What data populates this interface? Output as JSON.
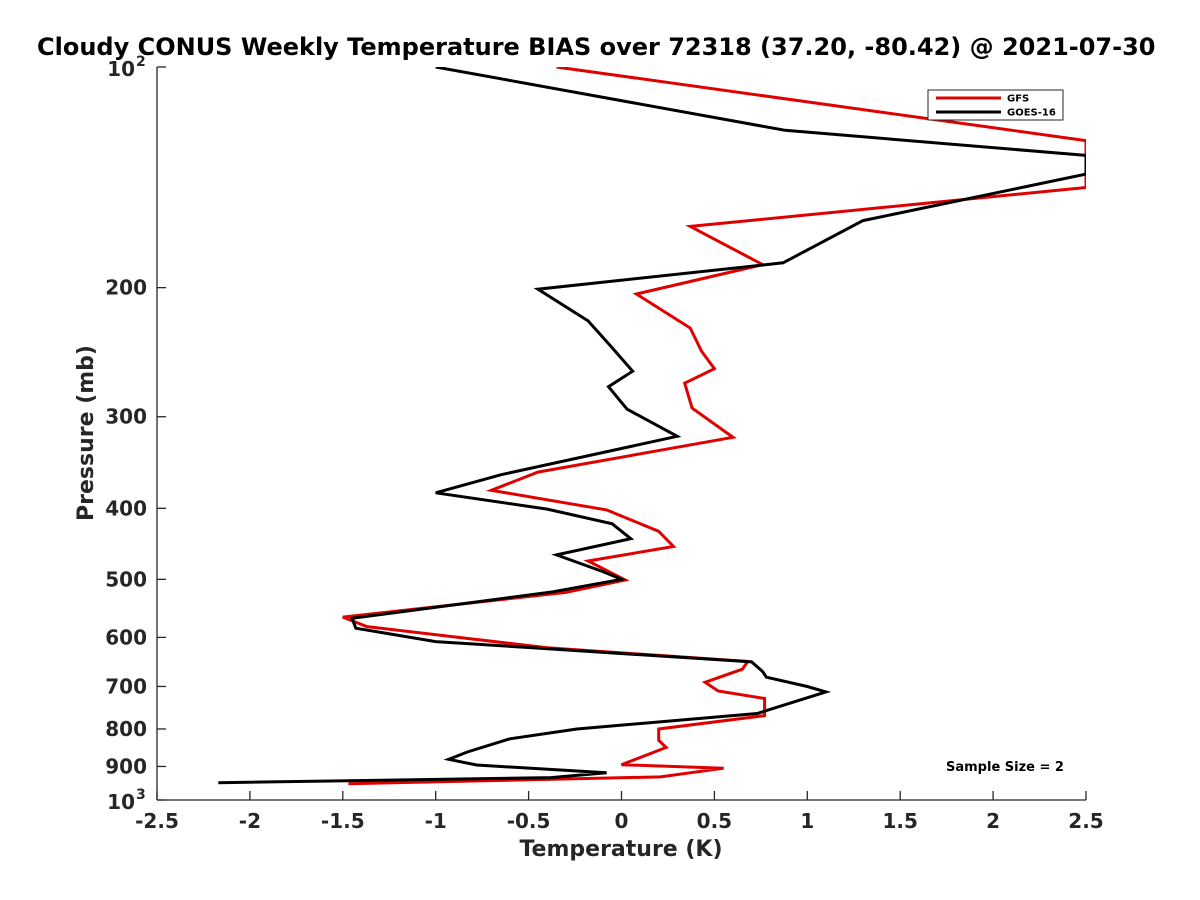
{
  "chart_data": {
    "type": "line",
    "title": "Cloudy CONUS Weekly Temperature BIAS over 72318 (37.20, -80.42) @ 2021-07-30",
    "xlabel": "Temperature (K)",
    "ylabel": "Pressure (mb)",
    "xlim": [
      -2.5,
      2.5
    ],
    "ylim": [
      100,
      1000
    ],
    "y_scale": "log",
    "y_reversed": true,
    "grid": false,
    "legend_position": "top-right",
    "x_ticks": [
      "-2.5",
      "-2",
      "-1.5",
      "-1",
      "-0.5",
      "0",
      "0.5",
      "1",
      "1.5",
      "2",
      "2.5"
    ],
    "y_ticks": [
      {
        "value": 100,
        "base": "10",
        "exp": "2"
      },
      {
        "value": 200,
        "label": "200"
      },
      {
        "value": 300,
        "label": "300"
      },
      {
        "value": 400,
        "label": "400"
      },
      {
        "value": 500,
        "label": "500"
      },
      {
        "value": 600,
        "label": "600"
      },
      {
        "value": 700,
        "label": "700"
      },
      {
        "value": 800,
        "label": "800"
      },
      {
        "value": 900,
        "label": "900"
      },
      {
        "value": 1000,
        "base": "10",
        "exp": "3"
      }
    ],
    "series": [
      {
        "name": "GFS",
        "color": "#e00000",
        "points": [
          [
            -0.35,
            100
          ],
          [
            2.5,
            126
          ],
          [
            2.5,
            146
          ],
          [
            0.37,
            165
          ],
          [
            0.76,
            186
          ],
          [
            0.08,
            204
          ],
          [
            0.37,
            227
          ],
          [
            0.43,
            244
          ],
          [
            0.5,
            258
          ],
          [
            0.34,
            270
          ],
          [
            0.38,
            292
          ],
          [
            0.6,
            320
          ],
          [
            -0.45,
            357
          ],
          [
            -0.7,
            378
          ],
          [
            -0.08,
            402
          ],
          [
            0.2,
            430
          ],
          [
            0.28,
            451
          ],
          [
            -0.18,
            472
          ],
          [
            0.02,
            501
          ],
          [
            -0.3,
            521
          ],
          [
            -1.5,
            563
          ],
          [
            -1.37,
            580
          ],
          [
            -0.4,
            620
          ],
          [
            0.68,
            647
          ],
          [
            0.65,
            663
          ],
          [
            0.45,
            691
          ],
          [
            0.52,
            710
          ],
          [
            0.77,
            727
          ],
          [
            0.77,
            767
          ],
          [
            0.2,
            800
          ],
          [
            0.2,
            829
          ],
          [
            0.24,
            848
          ],
          [
            0.0,
            895
          ],
          [
            0.55,
            905
          ],
          [
            0.21,
            930
          ],
          [
            -1.47,
            950
          ]
        ]
      },
      {
        "name": "GOES-16",
        "color": "#000000",
        "points": [
          [
            -1.0,
            100
          ],
          [
            0.88,
            122
          ],
          [
            2.5,
            132
          ],
          [
            2.5,
            140
          ],
          [
            1.3,
            162
          ],
          [
            0.87,
            185
          ],
          [
            -0.45,
            201
          ],
          [
            -0.18,
            222
          ],
          [
            -0.06,
            240
          ],
          [
            0.06,
            260
          ],
          [
            -0.07,
            273
          ],
          [
            0.03,
            293
          ],
          [
            0.3,
            319
          ],
          [
            -0.65,
            360
          ],
          [
            -1.0,
            381
          ],
          [
            -0.4,
            401
          ],
          [
            -0.05,
            420
          ],
          [
            0.05,
            440
          ],
          [
            -0.35,
            463
          ],
          [
            -0.1,
            488
          ],
          [
            0.0,
            500
          ],
          [
            -0.37,
            520
          ],
          [
            -1.45,
            565
          ],
          [
            -1.43,
            583
          ],
          [
            -1.0,
            608
          ],
          [
            -0.48,
            620
          ],
          [
            0.7,
            648
          ],
          [
            0.76,
            668
          ],
          [
            0.78,
            680
          ],
          [
            1.0,
            700
          ],
          [
            1.1,
            712
          ],
          [
            0.73,
            762
          ],
          [
            -0.24,
            800
          ],
          [
            -0.6,
            825
          ],
          [
            -0.83,
            860
          ],
          [
            -0.93,
            880
          ],
          [
            -0.78,
            896
          ],
          [
            -0.08,
            918
          ],
          [
            -0.38,
            932
          ],
          [
            -2.17,
            947
          ]
        ]
      }
    ],
    "annotations": [
      "Sample Size = 2"
    ]
  }
}
